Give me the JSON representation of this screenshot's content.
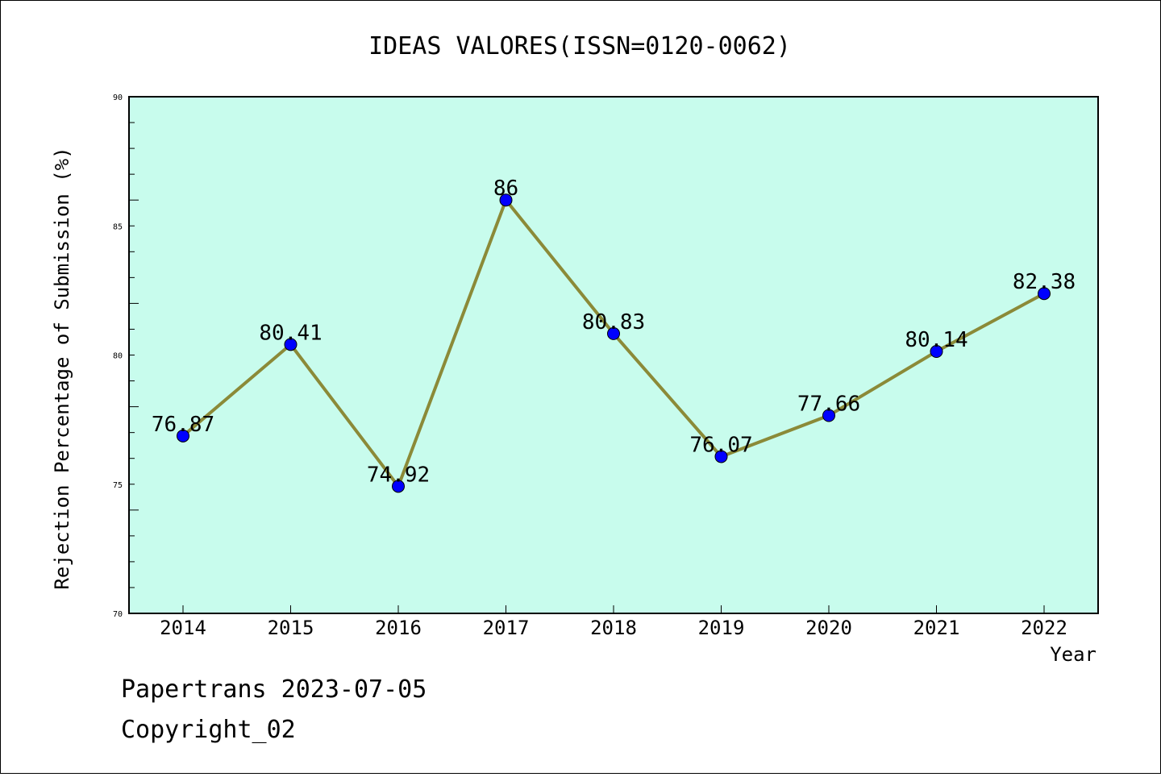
{
  "chart_data": {
    "type": "line",
    "title": "IDEAS VALORES(ISSN=0120-0062)",
    "xlabel": "Year",
    "ylabel": "Rejection Percentage of Submission (%)",
    "categories": [
      "2014",
      "2015",
      "2016",
      "2017",
      "2018",
      "2019",
      "2020",
      "2021",
      "2022"
    ],
    "series": [
      {
        "values": [
          76.87,
          80.41,
          74.92,
          86,
          80.83,
          76.07,
          77.66,
          80.14,
          82.38
        ]
      }
    ],
    "data_labels": [
      "76.87",
      "80.41",
      "74.92",
      "86",
      "80.83",
      "76.07",
      "77.66",
      "80.14",
      "82.38"
    ],
    "ylim": [
      70,
      90
    ],
    "yticks": [
      "70",
      "75",
      "80",
      "85",
      "90"
    ],
    "grid": false,
    "colors": {
      "plot_background": "#c8fced",
      "line": "#8b8a38",
      "marker": "#0000ff"
    }
  },
  "footer": {
    "line1": "Papertrans 2023-07-05",
    "line2": "Copyright_02"
  }
}
